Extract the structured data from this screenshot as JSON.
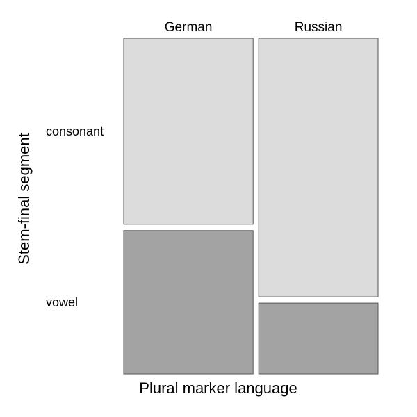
{
  "chart_data": {
    "type": "mosaic",
    "xlabel": "Plural marker language",
    "ylabel": "Stem-final segment",
    "columns": [
      {
        "label": "German",
        "share": 0.52
      },
      {
        "label": "Russian",
        "share": 0.48
      }
    ],
    "rows": [
      "consonant",
      "vowel"
    ],
    "proportions": [
      [
        0.565,
        0.435
      ],
      [
        0.785,
        0.215
      ]
    ],
    "colors": {
      "consonant": "#dcdcdc",
      "vowel": "#a3a3a3",
      "border": "#555555"
    }
  }
}
